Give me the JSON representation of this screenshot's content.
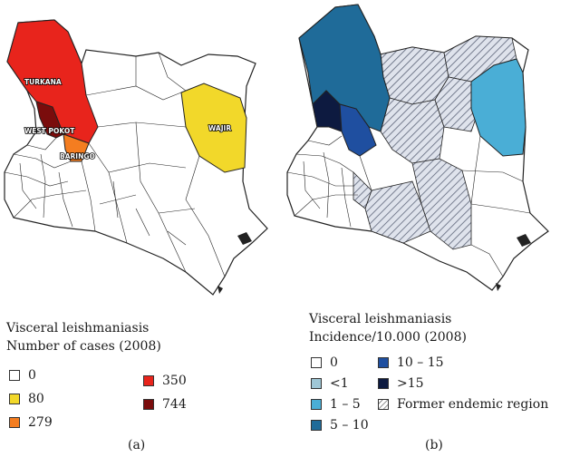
{
  "panel_a": {
    "counties": [
      {
        "name": "TURKANA",
        "color": "#e8241c"
      },
      {
        "name": "WEST POKOT",
        "color": "#7a0c0c"
      },
      {
        "name": "BARINGO",
        "color": "#f47d20"
      },
      {
        "name": "WAJIR",
        "color": "#f2d82a"
      }
    ],
    "legend_title_1": "Visceral leishmaniasis",
    "legend_title_2": "Number of cases (2008)",
    "legend": [
      {
        "label": "0",
        "color": "#ffffff"
      },
      {
        "label": "80",
        "color": "#f2d82a"
      },
      {
        "label": "279",
        "color": "#f47d20"
      },
      {
        "label": "350",
        "color": "#e8241c"
      },
      {
        "label": "744",
        "color": "#7a0c0c"
      }
    ],
    "caption": "(a)"
  },
  "panel_b": {
    "legend_title_1": "Visceral leishmaniasis",
    "legend_title_2": "Incidence/10.000 (2008)",
    "legend": [
      {
        "label": "0",
        "color": "#ffffff"
      },
      {
        "label": "<1",
        "color": "#9fc7d6"
      },
      {
        "label": "1 – 5",
        "color": "#4aaed6"
      },
      {
        "label": "5 – 10",
        "color": "#1f6b99"
      },
      {
        "label": "10 – 15",
        "color": "#1f4fa0"
      },
      {
        "label": ">15",
        "color": "#0d1a40"
      },
      {
        "label": "Former endemic region",
        "color": "hatch"
      }
    ],
    "caption": "(b)"
  }
}
